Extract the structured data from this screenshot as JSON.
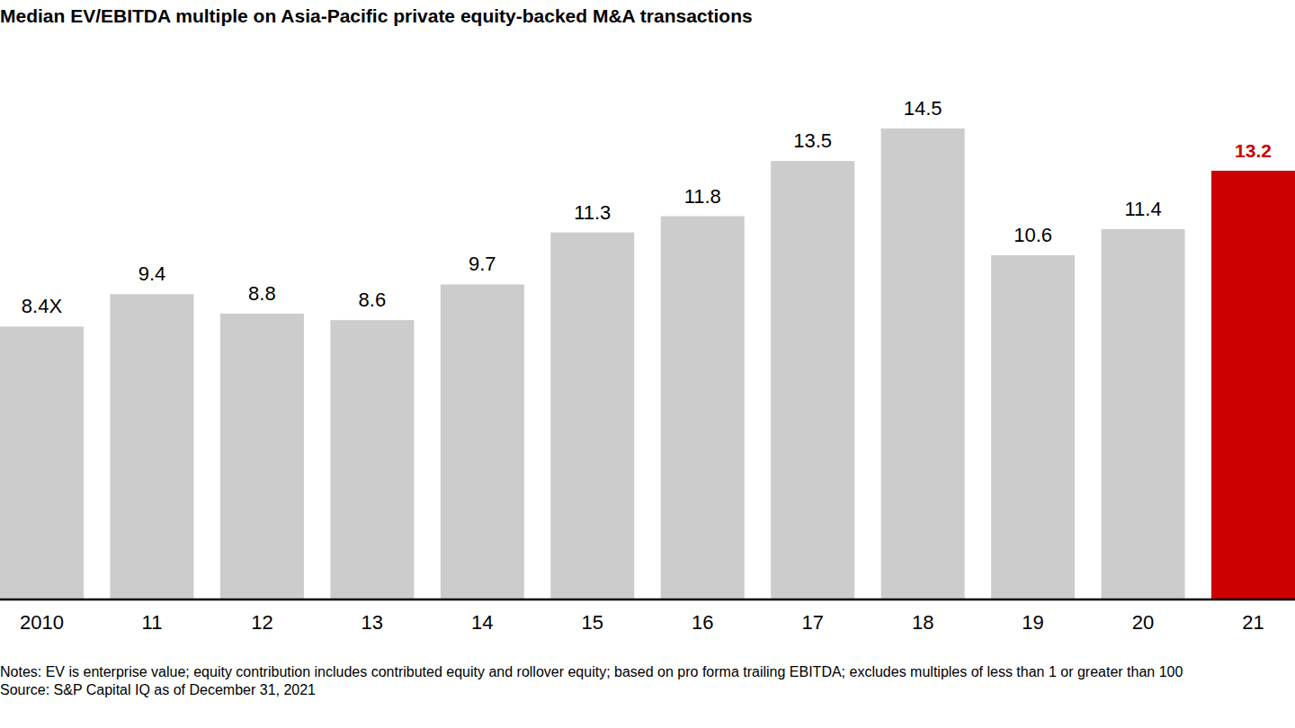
{
  "chart_data": {
    "type": "bar",
    "title": "Median EV/EBITDA multiple on Asia-Pacific private equity-backed M&A transactions",
    "categories": [
      "2010",
      "11",
      "12",
      "13",
      "14",
      "15",
      "16",
      "17",
      "18",
      "19",
      "20",
      "21"
    ],
    "values": [
      8.4,
      9.4,
      8.8,
      8.6,
      9.7,
      11.3,
      11.8,
      13.5,
      14.5,
      10.6,
      11.4,
      13.2
    ],
    "value_labels": [
      "8.4X",
      "9.4",
      "8.8",
      "8.6",
      "9.7",
      "11.3",
      "11.8",
      "13.5",
      "14.5",
      "10.6",
      "11.4",
      "13.2"
    ],
    "colors": [
      "#cccccc",
      "#cccccc",
      "#cccccc",
      "#cccccc",
      "#cccccc",
      "#cccccc",
      "#cccccc",
      "#cccccc",
      "#cccccc",
      "#cccccc",
      "#cccccc",
      "#cc0000"
    ],
    "ylim": [
      0,
      15
    ],
    "tick_labels": "x",
    "data_labels": true,
    "grid": false,
    "notes": "Notes: EV is enterprise value; equity contribution includes contributed equity and rollover equity; based on pro forma trailing EBITDA; excludes multiples of less than 1 or greater than 100",
    "source": "Source: S&P Capital IQ as of December 31, 2021"
  }
}
